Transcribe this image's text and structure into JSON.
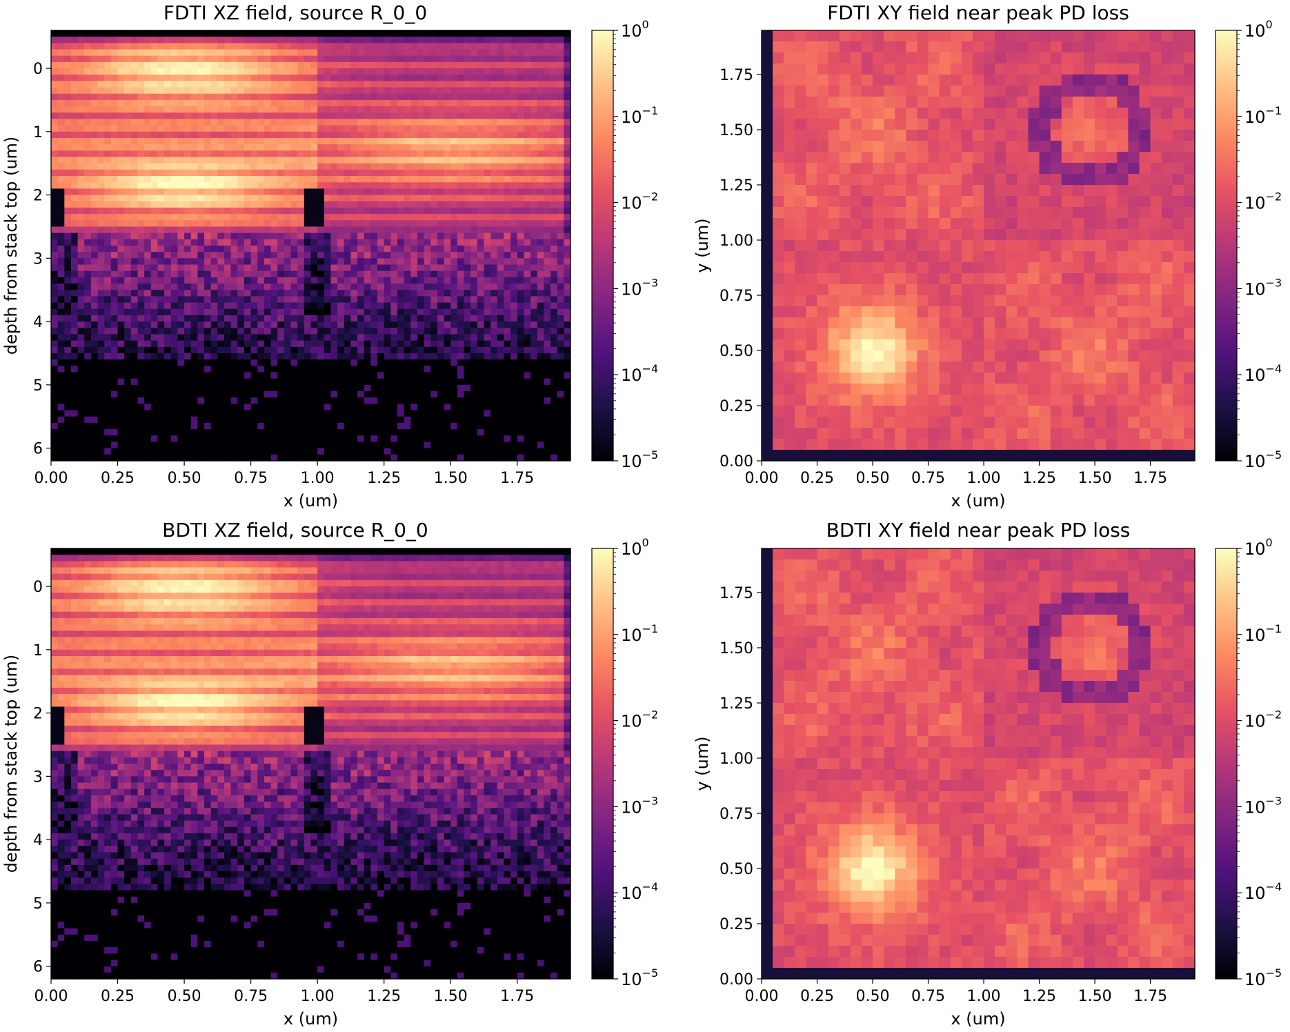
{
  "colors": {
    "background": "#ffffff",
    "colormap": "magma",
    "colormap_stops": [
      "#000004",
      "#1d1147",
      "#51127c",
      "#822681",
      "#b73779",
      "#e75263",
      "#fc8961",
      "#fec287",
      "#fcfdbf"
    ]
  },
  "chart_data": [
    {
      "type": "heatmap",
      "title": "FDTI XZ field, source R_0_0",
      "xlabel": "x (um)",
      "ylabel": "depth from stack top (um)",
      "xlim": [
        0.0,
        1.95
      ],
      "ylim": [
        6.2,
        -0.6
      ],
      "x_ticks": [
        "0.00",
        "0.25",
        "0.50",
        "0.75",
        "1.00",
        "1.25",
        "1.50",
        "1.75"
      ],
      "y_ticks": [
        "0",
        "1",
        "2",
        "3",
        "4",
        "5",
        "6"
      ],
      "color_scale": "log",
      "colorbar_range": [
        1e-05,
        1
      ],
      "colorbar_ticks": [
        "10^0",
        "10^-1",
        "10^-2",
        "10^-3",
        "10^-4",
        "10^-5"
      ]
    },
    {
      "type": "heatmap",
      "title": "FDTI XY field near peak PD loss",
      "xlabel": "x (um)",
      "ylabel": "y (um)",
      "xlim": [
        0.0,
        1.95
      ],
      "ylim": [
        0.0,
        1.95
      ],
      "x_ticks": [
        "0.00",
        "0.25",
        "0.50",
        "0.75",
        "1.00",
        "1.25",
        "1.50",
        "1.75"
      ],
      "y_ticks": [
        "0.00",
        "0.25",
        "0.50",
        "0.75",
        "1.00",
        "1.25",
        "1.50",
        "1.75"
      ],
      "color_scale": "log",
      "colorbar_range": [
        1e-05,
        1
      ],
      "colorbar_ticks": [
        "10^0",
        "10^-1",
        "10^-2",
        "10^-3",
        "10^-4",
        "10^-5"
      ]
    },
    {
      "type": "heatmap",
      "title": "BDTI XZ field, source R_0_0",
      "xlabel": "x (um)",
      "ylabel": "depth from stack top (um)",
      "xlim": [
        0.0,
        1.95
      ],
      "ylim": [
        6.2,
        -0.6
      ],
      "x_ticks": [
        "0.00",
        "0.25",
        "0.50",
        "0.75",
        "1.00",
        "1.25",
        "1.50",
        "1.75"
      ],
      "y_ticks": [
        "0",
        "1",
        "2",
        "3",
        "4",
        "5",
        "6"
      ],
      "color_scale": "log",
      "colorbar_range": [
        1e-05,
        1
      ],
      "colorbar_ticks": [
        "10^0",
        "10^-1",
        "10^-2",
        "10^-3",
        "10^-4",
        "10^-5"
      ]
    },
    {
      "type": "heatmap",
      "title": "BDTI XY field near peak PD loss",
      "xlabel": "x (um)",
      "ylabel": "y (um)",
      "xlim": [
        0.0,
        1.95
      ],
      "ylim": [
        0.0,
        1.95
      ],
      "x_ticks": [
        "0.00",
        "0.25",
        "0.50",
        "0.75",
        "1.00",
        "1.25",
        "1.50",
        "1.75"
      ],
      "y_ticks": [
        "0.00",
        "0.25",
        "0.50",
        "0.75",
        "1.00",
        "1.25",
        "1.50",
        "1.75"
      ],
      "color_scale": "log",
      "colorbar_range": [
        1e-05,
        1
      ],
      "colorbar_ticks": [
        "10^0",
        "10^-1",
        "10^-2",
        "10^-3",
        "10^-4",
        "10^-5"
      ]
    }
  ]
}
